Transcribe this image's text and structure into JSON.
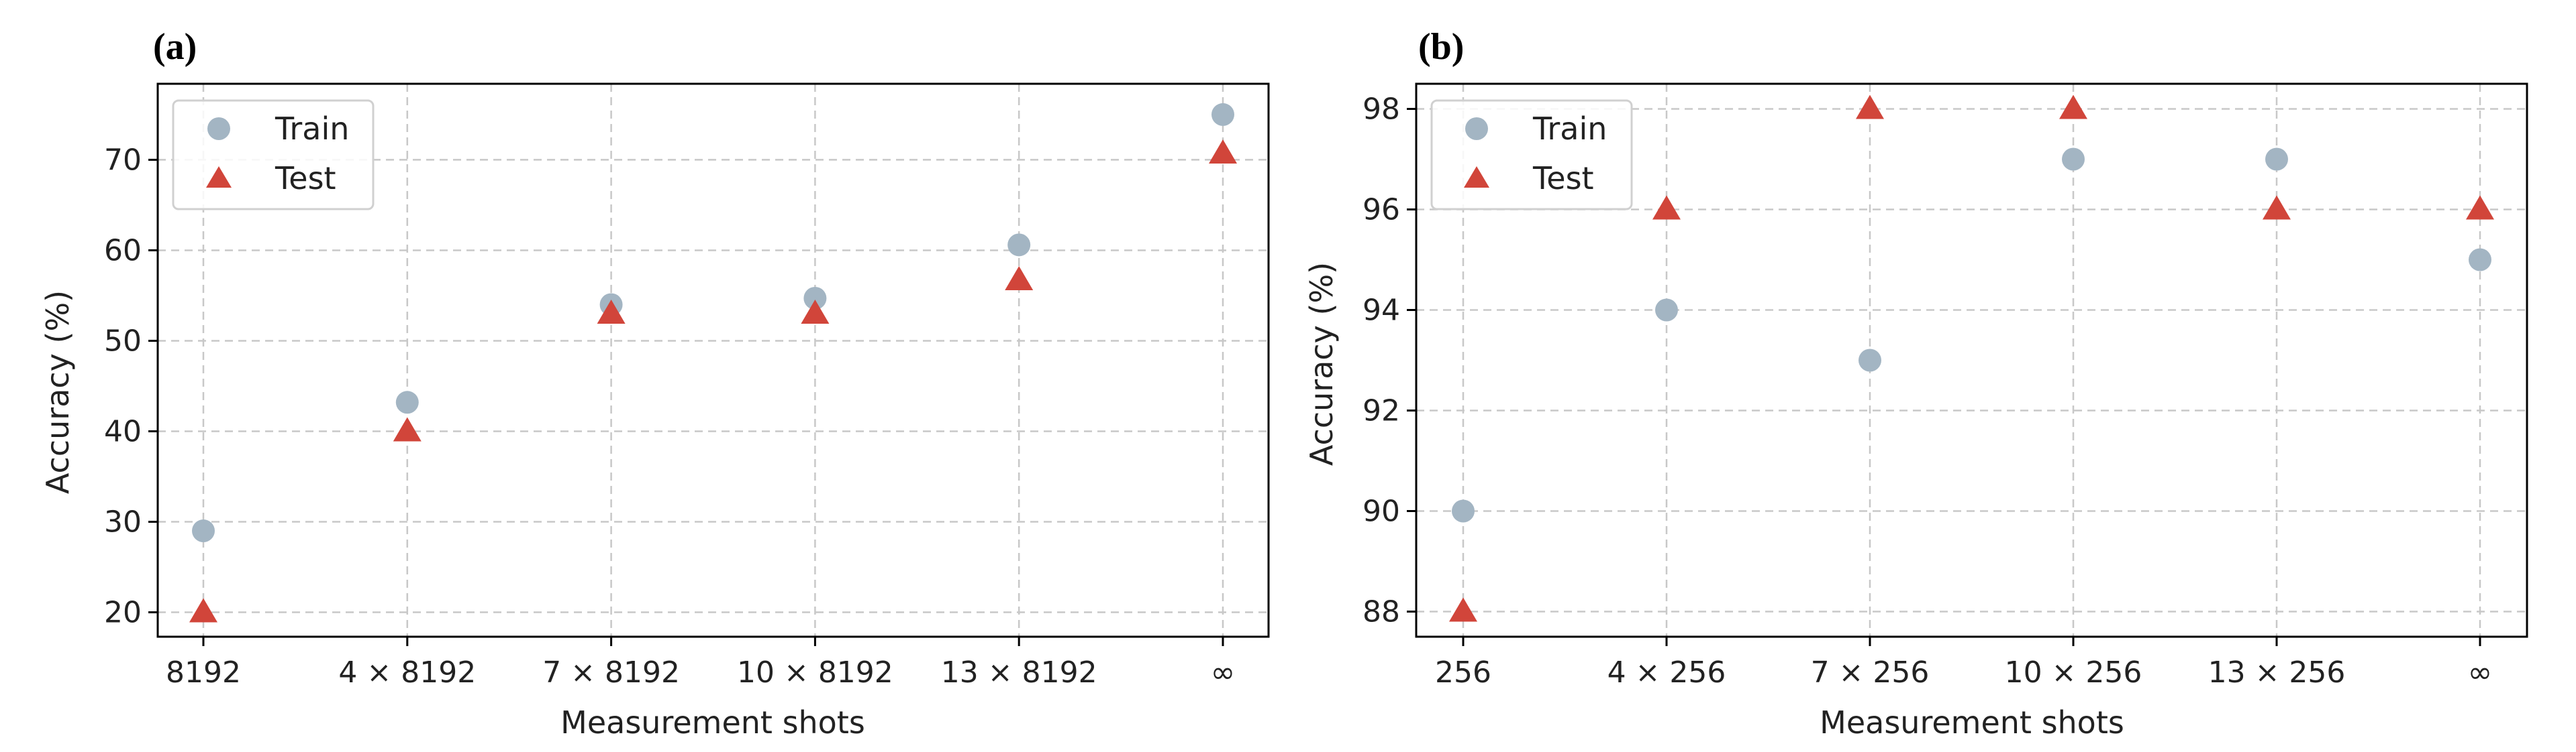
{
  "chart_data": [
    {
      "panel": "(a)",
      "type": "scatter",
      "title": "",
      "xlabel": "Measurement shots",
      "ylabel": "Accuracy (%)",
      "categories": [
        "8192",
        "4 × 8192",
        "7 × 8192",
        "10 × 8192",
        "13 × 8192",
        "∞"
      ],
      "ylim": [
        17.3,
        78.4
      ],
      "yticks": [
        20,
        30,
        40,
        50,
        60,
        70
      ],
      "grid": true,
      "legend_position": "top-left",
      "series": [
        {
          "name": "Train",
          "marker": "circle",
          "color": "#a3b5c3",
          "values": [
            29,
            43.2,
            54,
            54.7,
            60.6,
            75
          ]
        },
        {
          "name": "Test",
          "marker": "triangle",
          "color": "#d1453a",
          "values": [
            20,
            40,
            53,
            53,
            56.7,
            70.7
          ]
        }
      ]
    },
    {
      "panel": "(b)",
      "type": "scatter",
      "title": "",
      "xlabel": "Measurement shots",
      "ylabel": "Accuracy (%)",
      "categories": [
        "256",
        "4 × 256",
        "7 × 256",
        "10 × 256",
        "13 × 256",
        "∞"
      ],
      "ylim": [
        87.5,
        98.5
      ],
      "yticks": [
        88,
        90,
        92,
        94,
        96,
        98
      ],
      "grid": true,
      "legend_position": "top-left",
      "series": [
        {
          "name": "Train",
          "marker": "circle",
          "color": "#a3b5c3",
          "values": [
            90,
            94,
            93,
            97,
            97,
            95
          ]
        },
        {
          "name": "Test",
          "marker": "triangle",
          "color": "#d1453a",
          "values": [
            88,
            96,
            98,
            98,
            96,
            96
          ]
        }
      ]
    }
  ]
}
